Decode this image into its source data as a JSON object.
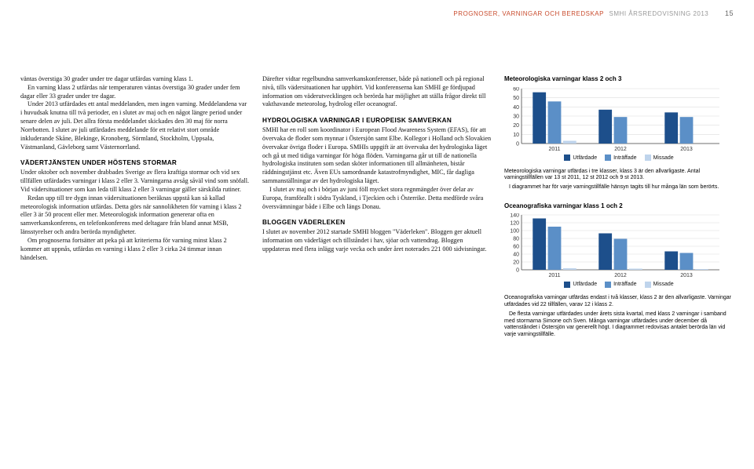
{
  "header": {
    "orange": "PROGNOSER, VARNINGAR OCH BEREDSKAP",
    "gray": "SMHI ÅRSREDOVISNING 2013",
    "page": "15"
  },
  "col1": {
    "p1": "väntas överstiga 30 grader under tre dagar utfärdas varning klass 1.",
    "p2": "En varning klass 2 utfärdas när temperaturen väntas överstiga 30 grader under fem dagar eller 33 grader under tre dagar.",
    "p3": "Under 2013 utfärdades ett antal meddelanden, men ingen varning. Meddelandena var i huvudsak knutna till två perioder, en i slutet av maj och en något längre period under senare delen av juli. Det allra första meddelandet skickades den 30 maj för norra Norrbotten. I slutet av juli utfärdades meddelande för ett relativt stort område inkluderande Skåne, Blekinge, Kronoberg, Sörmland, Stockholm, Uppsala, Västmanland, Gävleborg samt Västernorrland.",
    "h1": "VÄDERTJÄNSTEN UNDER HÖSTENS STORMAR",
    "p4": "Under oktober och november drabbades Sverige av flera kraftiga stormar och vid sex tillfällen utfärdades varningar i klass 2 eller 3. Varningarna avsåg såväl vind som snöfall. Vid vädersituationer som kan leda till klass 2 eller 3 varningar gäller särskilda rutiner.",
    "p5": "Redan upp till tre dygn innan vädersituationen beräknas uppstå kan så kallad meteorologisk information utfärdas. Detta görs när sannolikheten för varning i klass 2 eller 3 är 50 procent eller mer. Meteorologisk information genererar ofta en samverkanskonferens, en telefonkonferens med deltagare från bland annat MSB, länsstyrelser och andra berörda myndigheter.",
    "p6": "Om prognoserna fortsätter att peka på att kriterierna för varning minst klass 2 kommer att uppnås, utfärdas en varning i klass 2 eller 3 cirka 24 timmar innan händelsen."
  },
  "col2": {
    "p1": "Därefter vidtar regelbundna samverkanskonferenser, både på nationell och på regional nivå, tills vädersituationen har upphört. Vid konferenserna kan SMHI ge fördjupad information om väderutvecklingen och berörda har möjlighet att ställa frågor direkt till vakthavande meteorolog, hydrolog eller oceanograf.",
    "h1": "HYDROLOGISKA VARNINGAR I EUROPEISK SAMVERKAN",
    "p2": "SMHI har en roll som koordinator i European Flood Awareness System (EFAS), för att övervaka de floder som mynnar i Östersjön samt Elbe. Kollegor i Holland och Slovakien övervakar övriga floder i Europa. SMHIs uppgift är att övervaka det hydrologiska läget och gå ut med tidiga varningar för höga flöden. Varningarna går ut till de nationella hydrologiska instituten som sedan sköter informationen till allmänheten, bistår räddningstjänst etc. Även EUs samordnande katastrofmyndighet, MIC, får dagliga sammanställningar av det hydrologiska läget.",
    "p3": "I slutet av maj och i början av juni föll mycket stora regnmängder över delar av Europa, framförallt i södra Tyskland, i Tjeckien och i Österrike. Detta medförde svåra översvämningar både i Elbe och längs Donau.",
    "h2": "BLOGGEN VÄDERLEKEN",
    "p4": "I slutet av november 2012 startade SMHI bloggen \"Väderleken\". Bloggen ger aktuell information om väderläget och tillståndet i hav, sjöar och vattendrag. Bloggen uppdateras med flera inlägg varje vecka och under året noterades 221 000 sidvisningar."
  },
  "col3": {
    "chart1_title": "Meteorologiska varningar klass 2 och 3",
    "chart1_caption1": "Meteorologiska varningar utfärdas i tre klasser, klass 3 är den allvarligaste. Antal varningstillfällen var 13 st 2011, 12 st 2012 och 9 st 2013.",
    "chart1_caption2": "I diagrammet har för varje varningstillfälle hänsyn tagits till hur många län som berörts.",
    "chart2_title": "Oceanografiska varningar klass 1 och 2",
    "chart2_caption1": "Oceanografiska varningar utfärdas endast i två klasser, klass 2 är den allvarligaste. Varningar utfärdades vid 22 tillfällen, varav 12 i klass 2.",
    "chart2_caption2": "De flesta varningar utfärdades under årets sista kvartal, med klass 2 varningar i samband med stormarna Simone och Sven. Många varningar utfärdades under december då vattenståndet i Östersjön var generellt högt. I diagrammet redovisas antalet berörda län vid varje varningstillfälle."
  },
  "colors": {
    "utfardade": "#1d4f8b",
    "intraffade": "#5b8fc7",
    "missade": "#bfd4ec",
    "axis": "#444",
    "grid": "#dddddd"
  },
  "chart1": {
    "ymax": 60,
    "ytick": 10,
    "years": [
      "2011",
      "2012",
      "2013"
    ],
    "series": [
      {
        "name": "Utfärdade",
        "values": [
          56,
          37,
          34
        ]
      },
      {
        "name": "Inträffade",
        "values": [
          46,
          29,
          29
        ]
      },
      {
        "name": "Missade",
        "values": [
          3,
          0,
          0
        ]
      }
    ]
  },
  "chart2": {
    "ymax": 140,
    "ytick": 20,
    "years": [
      "2011",
      "2012",
      "2013"
    ],
    "series": [
      {
        "name": "Utfärdade",
        "values": [
          131,
          93,
          47
        ]
      },
      {
        "name": "Inträffade",
        "values": [
          110,
          79,
          43
        ]
      },
      {
        "name": "Missade",
        "values": [
          4,
          3,
          2
        ]
      }
    ]
  }
}
